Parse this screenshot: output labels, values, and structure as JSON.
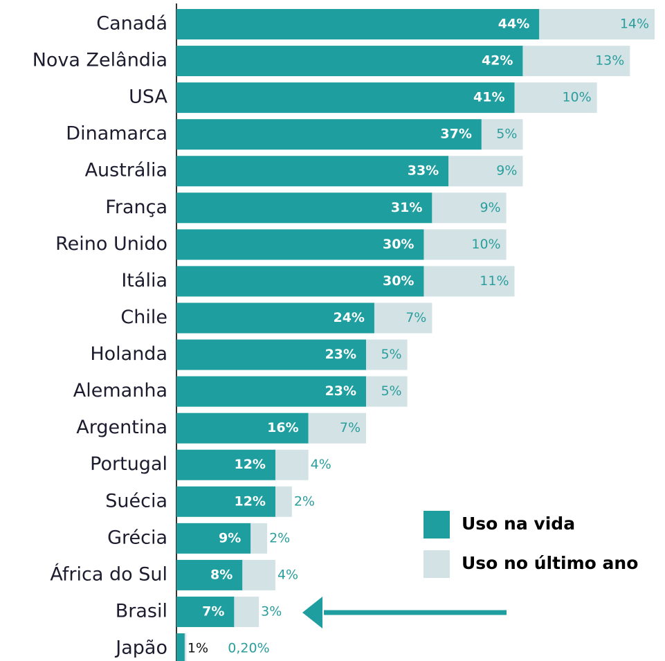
{
  "chart_data": {
    "type": "stacked_barh",
    "categories": [
      "Canadá",
      "Nova Zelândia",
      "USA",
      "Dinamarca",
      "Austrália",
      "França",
      "Reino Unido",
      "Itália",
      "Chile",
      "Holanda",
      "Alemanha",
      "Argentina",
      "Portugal",
      "Suécia",
      "Grécia",
      "África do Sul",
      "Brasil",
      "Japão"
    ],
    "series": [
      {
        "name": "Uso na vida",
        "color": "#1f9e9f",
        "values": [
          44,
          42,
          41,
          37,
          33,
          31,
          30,
          30,
          24,
          23,
          23,
          16,
          12,
          12,
          9,
          8,
          7,
          1
        ],
        "value_labels": [
          "44%",
          "42%",
          "41%",
          "37%",
          "33%",
          "31%",
          "30%",
          "30%",
          "24%",
          "23%",
          "23%",
          "16%",
          "12%",
          "12%",
          "9%",
          "8%",
          "7%",
          "1%"
        ]
      },
      {
        "name": "Uso no último ano",
        "color": "#d3e3e5",
        "values": [
          14,
          13,
          10,
          5,
          9,
          9,
          10,
          11,
          7,
          5,
          5,
          7,
          4,
          2,
          2,
          4,
          3,
          0.2
        ],
        "value_labels": [
          "14%",
          "13%",
          "10%",
          "5%",
          "9%",
          "9%",
          "10%",
          "11%",
          "7%",
          "5%",
          "5%",
          "7%",
          "4%",
          "2%",
          "2%",
          "4%",
          "3%",
          "0,20%"
        ]
      }
    ],
    "xlim": [
      0,
      59
    ]
  }
}
